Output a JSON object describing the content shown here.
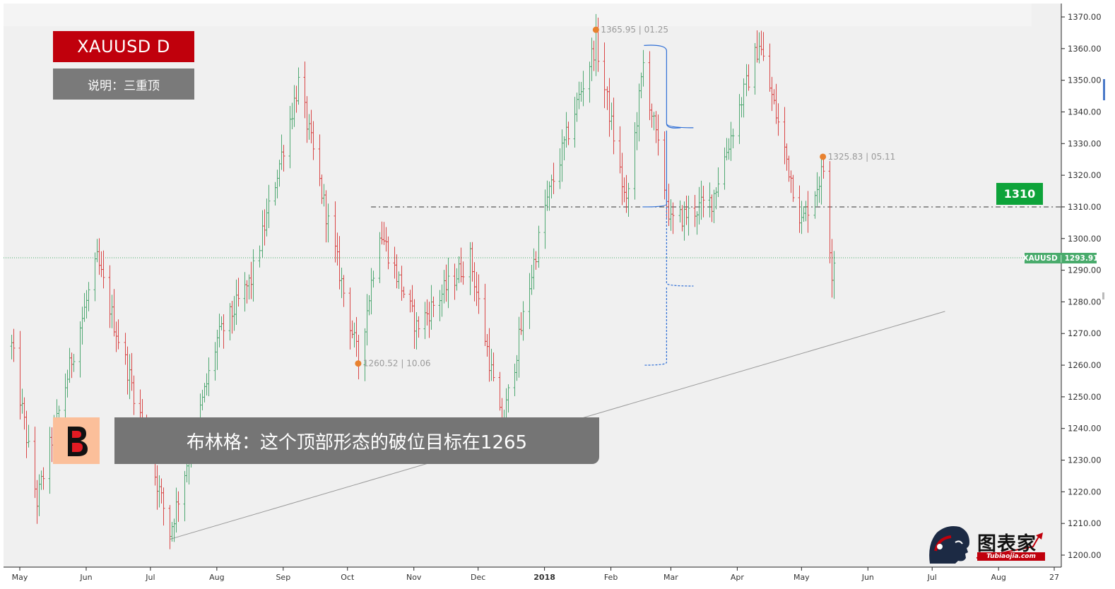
{
  "header": {
    "symbol_label": "XAUUSD  D",
    "note_label": "说明：三重顶"
  },
  "caption": {
    "text": "布林格：这个顶部形态的破位目标在1265"
  },
  "level_tag": {
    "label": "1310"
  },
  "price_tag": {
    "symbol": "XAUUSD",
    "price": "1293.91"
  },
  "logo": {
    "text": "图表家",
    "subtext": "Tubiaojia.com"
  },
  "colors": {
    "up": "#4fa872",
    "down": "#d94646",
    "level_tag": "#0ea33a",
    "symbol_box": "#c0000c",
    "marker": "#e8812e",
    "profile": "#2f6fd6"
  },
  "chart_data": {
    "type": "ohlc",
    "timeframe": "D",
    "ylim": [
      1197,
      1373
    ],
    "y_ticks": [
      "1370.00",
      "1360.00",
      "1350.00",
      "1340.00",
      "1330.00",
      "1320.00",
      "1310.00",
      "1300.00",
      "1290.00",
      "1280.00",
      "1270.00",
      "1260.00",
      "1250.00",
      "1240.00",
      "1230.00",
      "1220.00",
      "1210.00",
      "1200.00"
    ],
    "x_ticks": [
      "May",
      "Jun",
      "Jul",
      "Aug",
      "Sep",
      "Oct",
      "Nov",
      "Dec",
      "2018",
      "Feb",
      "Mar",
      "Apr",
      "May",
      "Jun",
      "Jul",
      "Aug",
      "27"
    ],
    "date_range": [
      "2017-04-27",
      "2018-08-27"
    ],
    "anchors": [
      {
        "date": "2017-04-27",
        "close": 1266
      },
      {
        "date": "2017-05-09",
        "close": 1217
      },
      {
        "date": "2017-05-25",
        "close": 1262
      },
      {
        "date": "2017-06-06",
        "close": 1293
      },
      {
        "date": "2017-06-26",
        "close": 1244
      },
      {
        "date": "2017-07-10",
        "close": 1207
      },
      {
        "date": "2017-08-01",
        "close": 1268
      },
      {
        "date": "2017-08-17",
        "close": 1287
      },
      {
        "date": "2017-09-08",
        "close": 1349
      },
      {
        "date": "2017-10-06",
        "close": 1261
      },
      {
        "date": "2017-10-16",
        "close": 1303
      },
      {
        "date": "2017-11-02",
        "close": 1272
      },
      {
        "date": "2017-11-27",
        "close": 1294
      },
      {
        "date": "2017-12-12",
        "close": 1240
      },
      {
        "date": "2018-01-01",
        "close": 1310
      },
      {
        "date": "2018-01-25",
        "close": 1362
      },
      {
        "date": "2018-02-08",
        "close": 1310
      },
      {
        "date": "2018-02-16",
        "close": 1355
      },
      {
        "date": "2018-03-01",
        "close": 1305
      },
      {
        "date": "2018-03-20",
        "close": 1312
      },
      {
        "date": "2018-04-11",
        "close": 1362
      },
      {
        "date": "2018-05-01",
        "close": 1305
      },
      {
        "date": "2018-05-11",
        "close": 1322
      },
      {
        "date": "2018-05-15",
        "close": 1290
      },
      {
        "date": "2018-05-16",
        "close": 1294
      }
    ],
    "annotations": [
      {
        "date": "2018-01-25",
        "price": 1365.95,
        "label": "1365.95",
        "sep": "|",
        "tag": "01.25"
      },
      {
        "date": "2017-10-06",
        "price": 1260.52,
        "label": "1260.52",
        "sep": "|",
        "tag": "10.06"
      },
      {
        "date": "2018-05-11",
        "price": 1325.83,
        "label": "1325.83",
        "sep": "|",
        "tag": "05.11"
      }
    ],
    "horizontal_levels": [
      {
        "price": 1310,
        "style": "dash-dot",
        "from_date": "2017-10-12"
      },
      {
        "price": 1293.91,
        "style": "dotted",
        "from_date": "2017-04-27"
      }
    ],
    "trendline": {
      "from": {
        "date": "2017-07-10",
        "price": 1205
      },
      "to": {
        "date": "2018-07-07",
        "price": 1277
      }
    },
    "volume_profile": {
      "x_date": "2018-02-27",
      "solid": {
        "top": 1361,
        "bottom": 1310,
        "peak_price": 1335
      },
      "dashed": {
        "top": 1310,
        "bottom": 1260,
        "peak_price": 1285
      }
    }
  }
}
